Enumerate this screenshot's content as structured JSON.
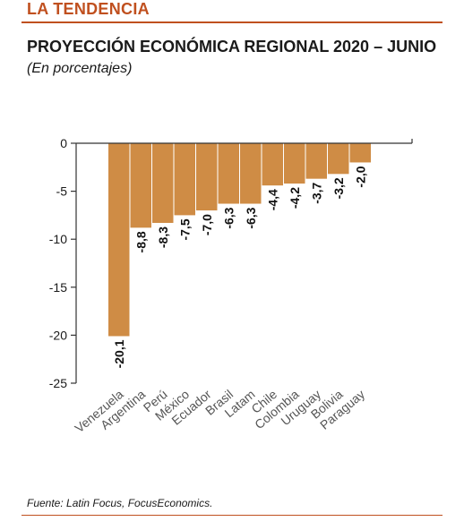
{
  "header": {
    "section": "LA TENDENCIA",
    "title": "PROYECCIÓN ECONÓMICA REGIONAL 2020 – JUNIO",
    "subtitle": "(En porcentajes)"
  },
  "source": "Fuente: Latin Focus, FocusEconomics.",
  "colors": {
    "bar": "#cf8c45",
    "accent": "#c0501f",
    "axis": "#333333"
  },
  "chart_data": {
    "type": "bar",
    "categories": [
      "Venezuela",
      "Argentina",
      "Perú",
      "México",
      "Ecuador",
      "Brasil",
      "Latam",
      "Chile",
      "Colombia",
      "Uruguay",
      "Bolivia",
      "Paraguay"
    ],
    "values": [
      -20.1,
      -8.8,
      -8.3,
      -7.5,
      -7.0,
      -6.3,
      -6.3,
      -4.4,
      -4.2,
      -3.7,
      -3.2,
      -2.0
    ],
    "data_labels": [
      "-20,1",
      "-8,8",
      "-8,3",
      "-7,5",
      "-7,0",
      "-6,3",
      "-6,3",
      "-4,4",
      "-4,2",
      "-3,7",
      "-3,2",
      "-2,0"
    ],
    "yticks": [
      0,
      -5,
      -10,
      -15,
      -20,
      -25
    ],
    "ytick_labels": [
      "0",
      "-5",
      "-10",
      "-15",
      "-20",
      "-25"
    ],
    "ylim": [
      -25,
      0
    ],
    "grid": false
  }
}
